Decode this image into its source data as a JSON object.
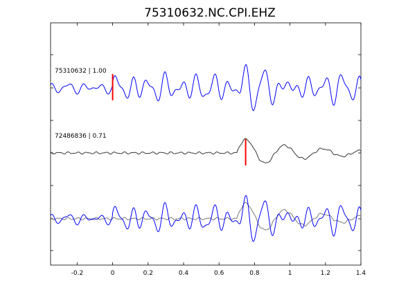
{
  "chart_data": {
    "type": "line",
    "title": "75310632.NC.CPI.EHZ",
    "xlabel": "",
    "ylabel": "",
    "xlim": [
      -0.35,
      1.4
    ],
    "x_ticks": [
      -0.2,
      0,
      0.2,
      0.4,
      0.6,
      0.8,
      1.0,
      1.2,
      1.4
    ],
    "x_tick_labels": [
      "-0.2",
      "0",
      "0.2",
      "0.4",
      "0.6",
      "0.8",
      "1",
      "1.2",
      "1.4"
    ],
    "grid": false,
    "traces": [
      {
        "label": "75310632 | 1.00",
        "color": "#0000ff",
        "pick_time": 0.0,
        "pick_color": "#ff0000",
        "signal": "main"
      },
      {
        "label": "72486836 | 0.71",
        "color": "#333333",
        "pick_time": 0.75,
        "pick_color": "#ff0000",
        "signal": "reference"
      },
      {
        "label": "",
        "color": "#0000ff",
        "overlay_color": "#777777",
        "signal": "overlay"
      }
    ]
  }
}
